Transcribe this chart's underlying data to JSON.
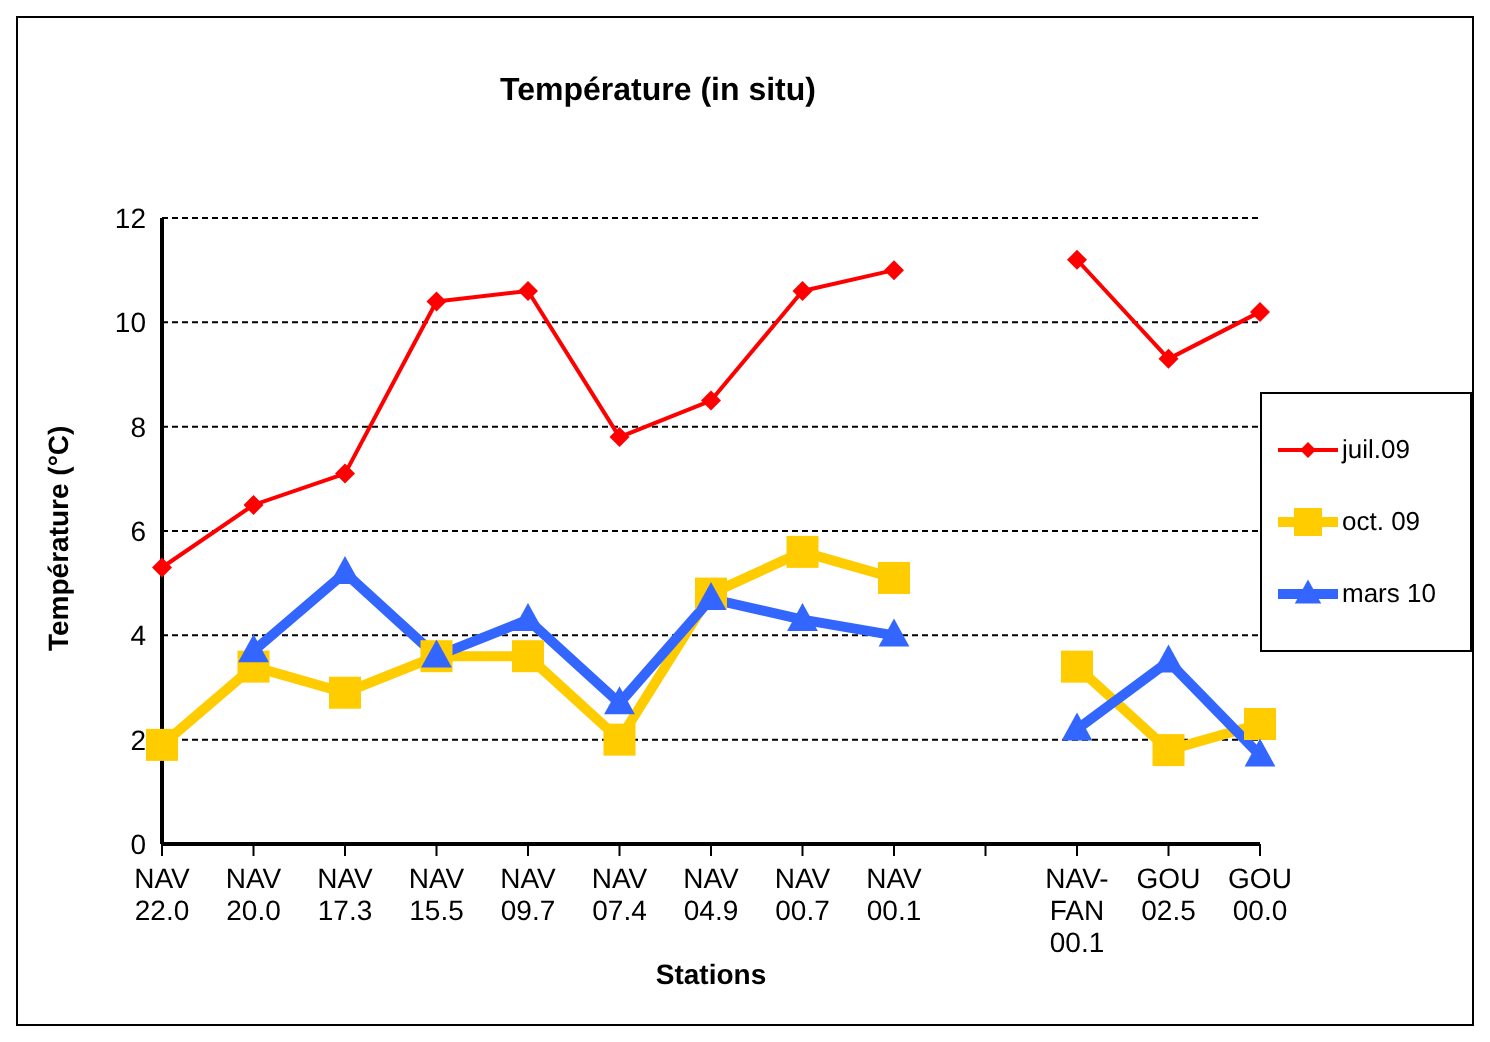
{
  "chart_data": {
    "type": "line",
    "title": "Température (in situ)",
    "xlabel": "Stations",
    "ylabel": "Température (°C)",
    "categories": [
      "NAV\n22.0",
      "NAV\n20.0",
      "NAV\n17.3",
      "NAV\n15.5",
      "NAV\n09.7",
      "NAV\n07.4",
      "NAV\n04.9",
      "NAV\n00.7",
      "NAV\n00.1",
      null,
      "NAV-\nFAN\n00.1",
      "GOU\n02.5",
      "GOU\n00.0"
    ],
    "series": [
      {
        "name": "juil.09",
        "color": "#ff0000",
        "marker": "diamond",
        "values": [
          5.3,
          6.5,
          7.1,
          10.4,
          10.6,
          7.8,
          8.5,
          10.6,
          11.0,
          null,
          11.2,
          9.3,
          10.2
        ]
      },
      {
        "name": "oct. 09",
        "color": "#ffcc00",
        "marker": "square",
        "values": [
          1.9,
          3.4,
          2.9,
          3.6,
          3.6,
          2.0,
          4.8,
          5.6,
          5.1,
          null,
          3.4,
          1.8,
          2.3
        ]
      },
      {
        "name": "mars 10",
        "color": "#3366ff",
        "marker": "triangle",
        "values": [
          null,
          3.7,
          5.2,
          3.6,
          4.3,
          2.7,
          4.7,
          4.3,
          4.0,
          null,
          2.2,
          3.5,
          1.7
        ]
      }
    ],
    "ylim": [
      0,
      12
    ],
    "yticks": [
      0,
      2,
      4,
      6,
      8,
      10,
      12
    ],
    "grid": "y",
    "legend": "right"
  }
}
